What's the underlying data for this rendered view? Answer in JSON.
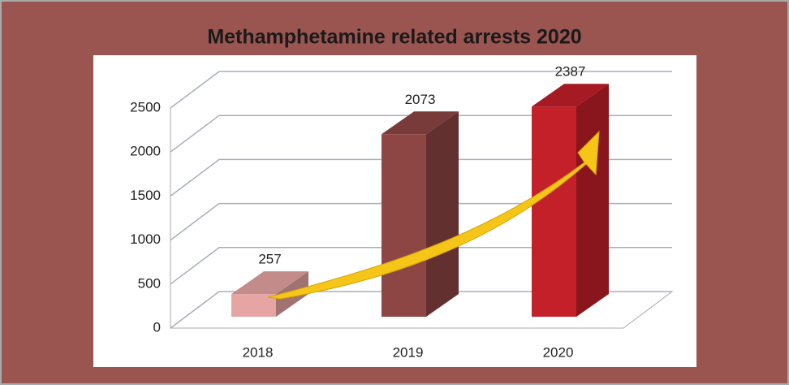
{
  "chart_data": {
    "type": "bar3d",
    "title": "Methamphetamine related arrests 2020",
    "categories": [
      "2018",
      "2019",
      "2020"
    ],
    "values": [
      257,
      2073,
      2387
    ],
    "colors": [
      "#e6a5a3",
      "#8e4645",
      "#c4202a"
    ],
    "ylim": [
      0,
      2500
    ],
    "yticks": [
      0,
      500,
      1000,
      1500,
      2000,
      2500
    ],
    "grid": true
  }
}
